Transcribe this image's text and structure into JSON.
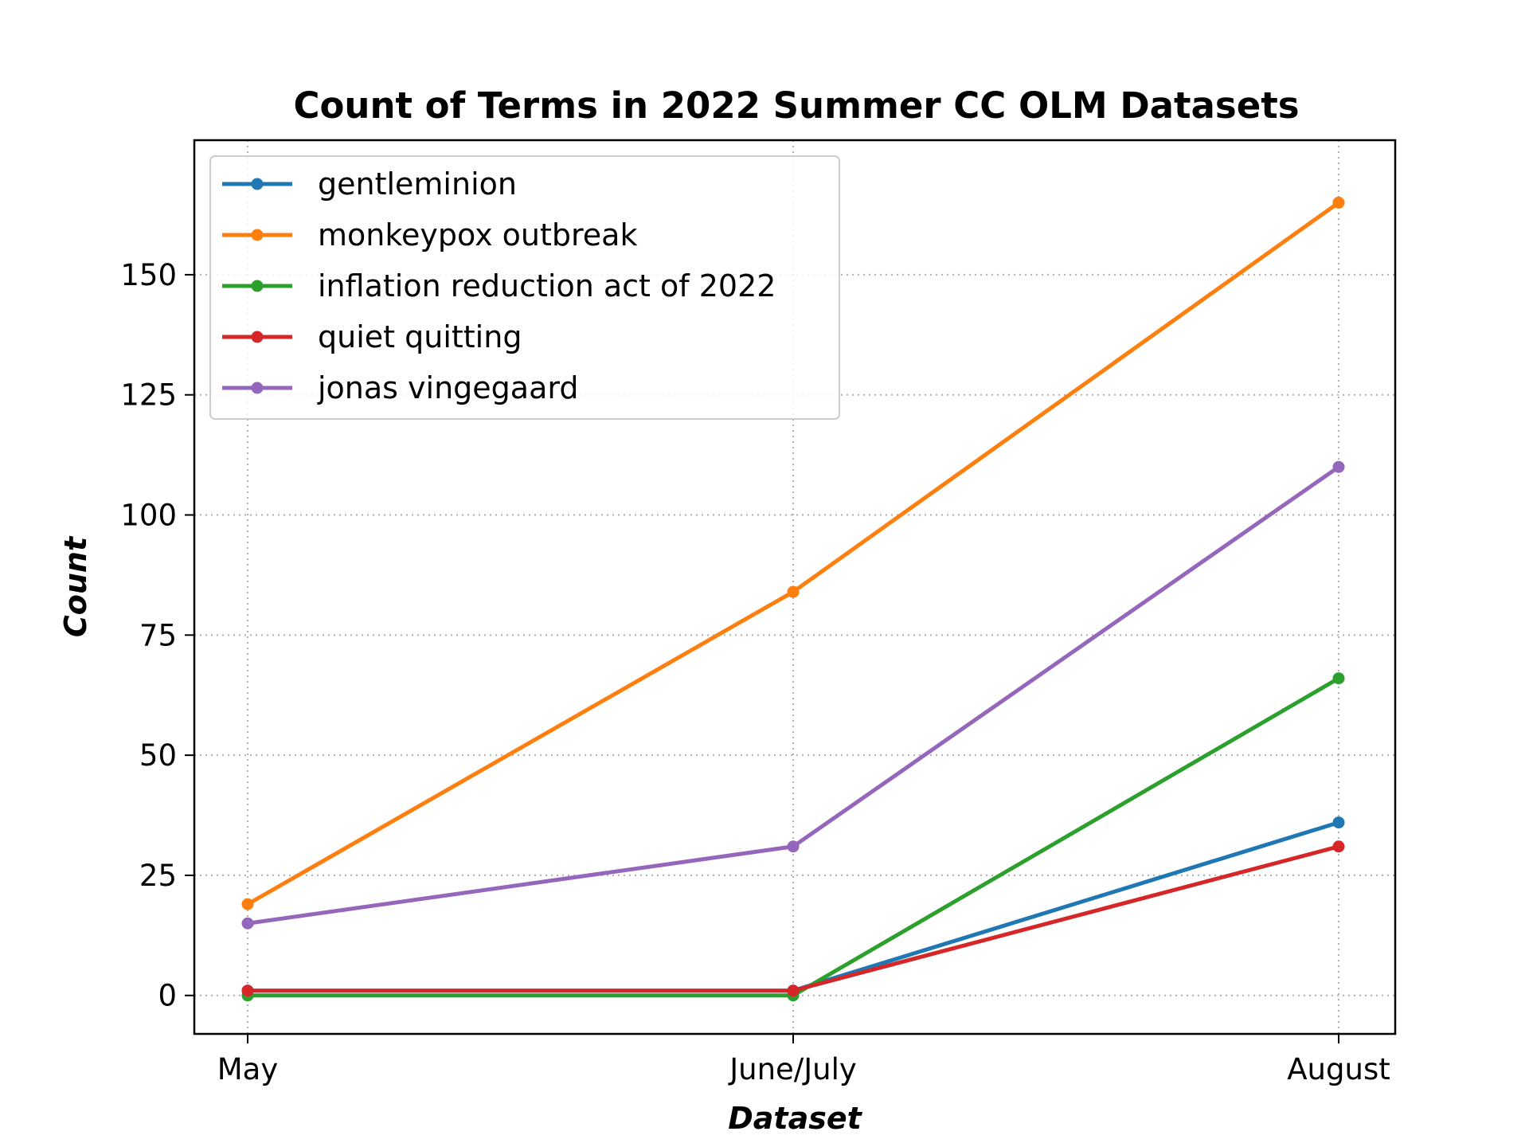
{
  "chart_data": {
    "type": "line",
    "title": "Count of Terms in 2022 Summer CC OLM Datasets",
    "xlabel": "Dataset",
    "ylabel": "Count",
    "categories": [
      "May",
      "June/July",
      "August"
    ],
    "ylim": [
      -8,
      178
    ],
    "yticks": [
      0,
      25,
      50,
      75,
      100,
      125,
      150
    ],
    "grid": true,
    "legend_position": "top-left",
    "series": [
      {
        "name": "gentleminion",
        "color": "#1f77b4",
        "values": [
          1,
          1,
          36
        ]
      },
      {
        "name": "monkeypox outbreak",
        "color": "#ff7f0e",
        "values": [
          19,
          84,
          165
        ]
      },
      {
        "name": "inflation reduction act of 2022",
        "color": "#2ca02c",
        "values": [
          0,
          0,
          66
        ]
      },
      {
        "name": "quiet quitting",
        "color": "#d62728",
        "values": [
          1,
          1,
          31
        ]
      },
      {
        "name": "jonas vingegaard",
        "color": "#9467bd",
        "values": [
          15,
          31,
          110
        ]
      }
    ]
  }
}
